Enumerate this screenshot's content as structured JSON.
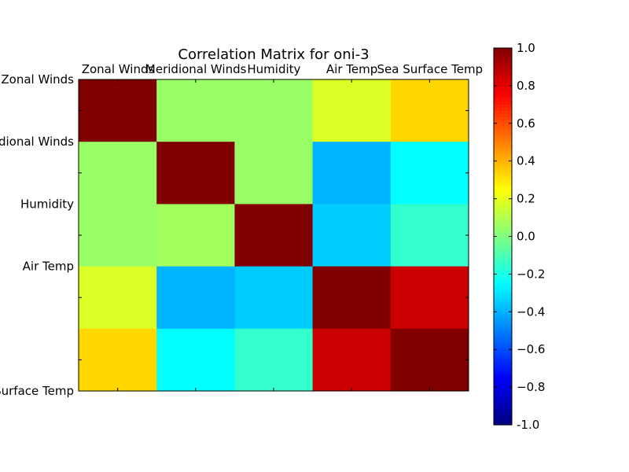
{
  "chart_data": {
    "type": "heatmap",
    "title": "Correlation Matrix for oni-3",
    "x_labels": [
      "Zonal Winds",
      "Meridional Winds",
      "Humidity",
      "Air Temp",
      "Sea Surface Temp"
    ],
    "y_labels": [
      "Zonal Winds",
      "Meridional Winds",
      "Humidity",
      "Air Temp",
      "Sea Surface Temp"
    ],
    "values": [
      [
        1.0,
        0.05,
        0.05,
        0.18,
        0.33
      ],
      [
        0.05,
        1.0,
        0.05,
        -0.4,
        -0.25
      ],
      [
        0.05,
        0.07,
        1.0,
        -0.35,
        -0.15
      ],
      [
        0.18,
        -0.4,
        -0.35,
        1.0,
        0.85
      ],
      [
        0.33,
        -0.25,
        -0.15,
        0.85,
        1.0
      ]
    ],
    "colorbar": {
      "min": -1.0,
      "max": 1.0,
      "ticks": [
        "-1.0",
        "−0.8",
        "−0.6",
        "−0.4",
        "−0.2",
        "0.0",
        "0.2",
        "0.4",
        "0.6",
        "0.8",
        "1.0"
      ],
      "tick_values": [
        -1.0,
        -0.8,
        -0.6,
        -0.4,
        -0.2,
        0.0,
        0.2,
        0.4,
        0.6,
        0.8,
        1.0
      ],
      "colormap": "jet"
    },
    "x_axis_position": "top",
    "grid": false
  }
}
